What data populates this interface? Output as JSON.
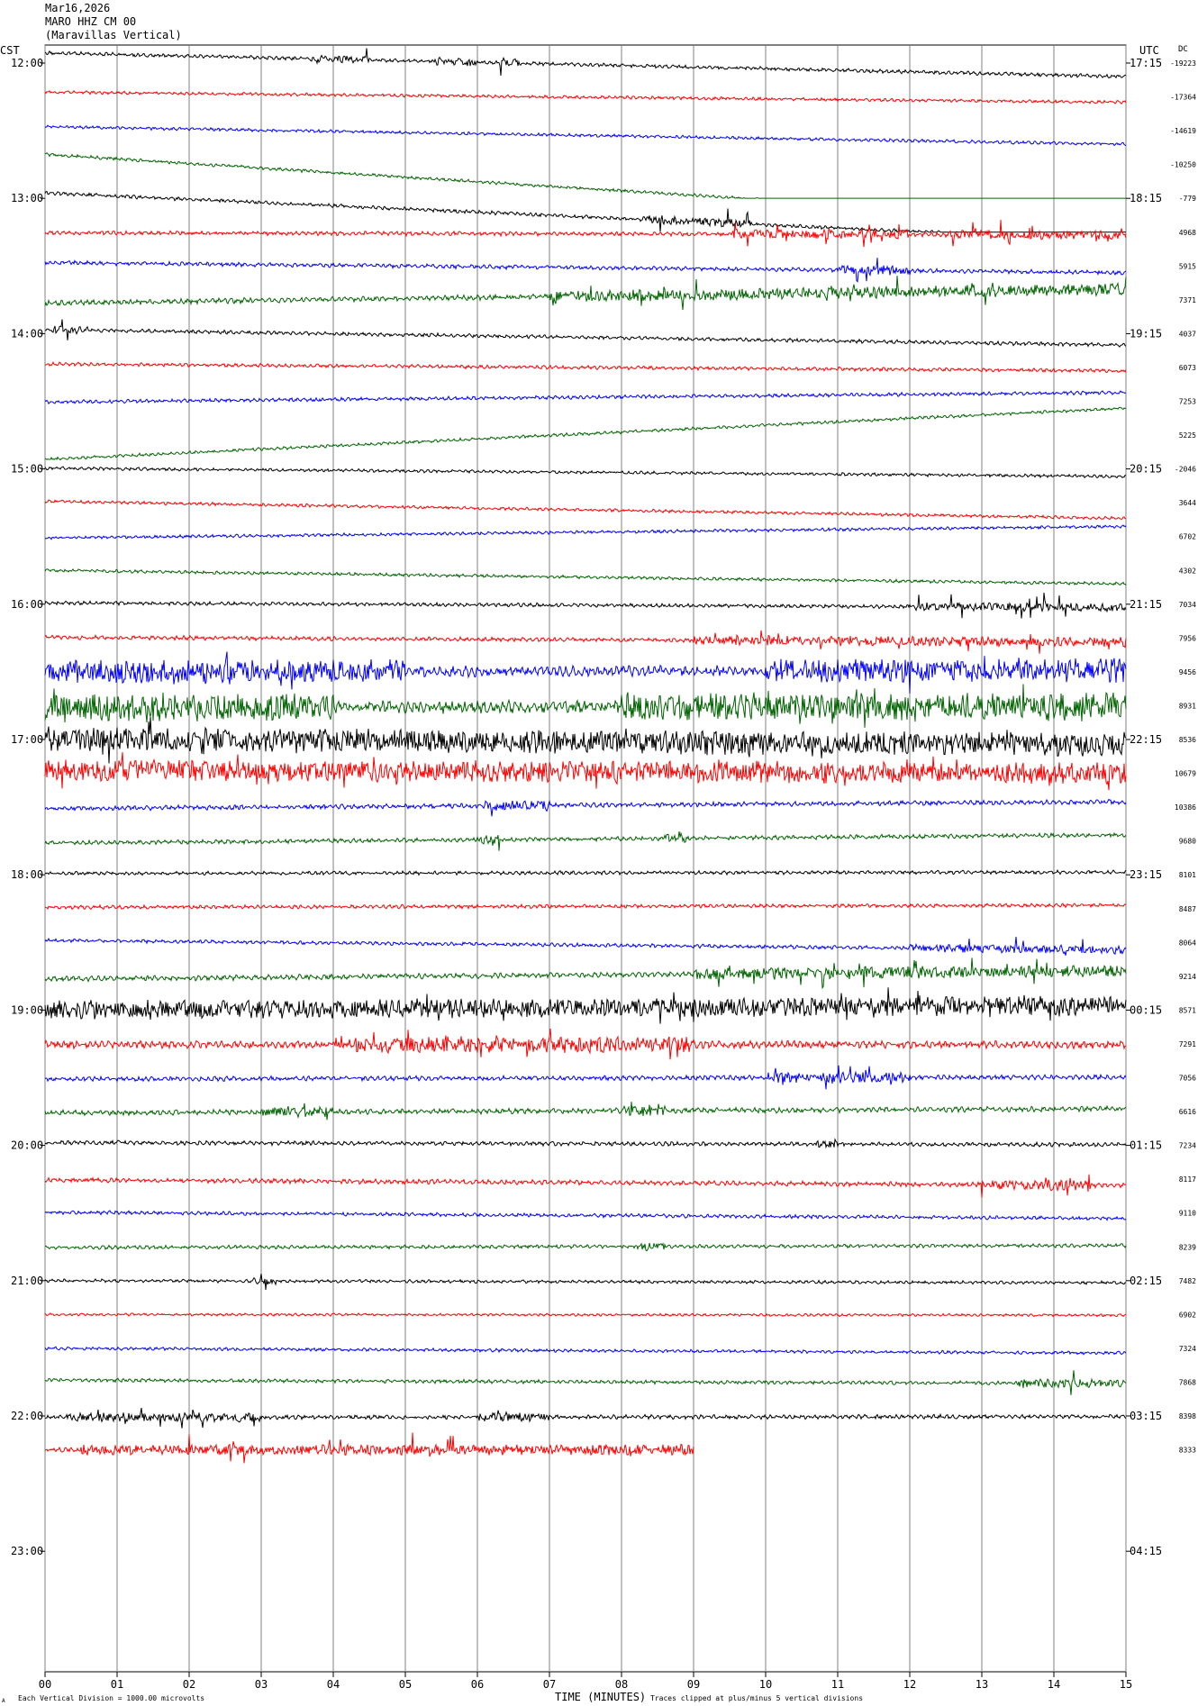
{
  "header": {
    "date": "Mar16,2026",
    "station": "MARO HHZ CM 00",
    "location": "(Maravillas Vertical)"
  },
  "left_axis_label": "CST",
  "right_axis_label": "UTC",
  "dc_label": "DC",
  "bottom": {
    "xlabel": "TIME (MINUTES)",
    "scale_note": "Each Vertical Division = 1000.00 microvolts",
    "clip_note": "Traces clipped at plus/minus 5 vertical divisions",
    "corner_mark": "A"
  },
  "colors": {
    "trace_cycle": [
      "#000000",
      "#ff0000",
      "#0000ff",
      "#006400"
    ],
    "grid": "#808080"
  },
  "chart_data": {
    "type": "line",
    "title": "",
    "xlabel": "TIME (MINUTES)",
    "ylabel": "",
    "xlim": [
      0,
      15
    ],
    "x_ticks": [
      "00",
      "01",
      "02",
      "03",
      "04",
      "05",
      "06",
      "07",
      "08",
      "09",
      "10",
      "11",
      "12",
      "13",
      "14",
      "15"
    ],
    "hours_cst": [
      "12:00",
      "13:00",
      "14:00",
      "15:00",
      "16:00",
      "17:00",
      "18:00",
      "19:00",
      "20:00",
      "21:00",
      "22:00",
      "23:00"
    ],
    "hours_utc": [
      "17:15",
      "18:15",
      "19:15",
      "20:15",
      "21:15",
      "22:15",
      "23:15",
      "00:15",
      "01:15",
      "02:15",
      "03:15",
      "04:15"
    ],
    "traces_per_hour": 4,
    "minutes_per_trace": 15,
    "dc_offsets": [
      -19223,
      -17364,
      -14619,
      -10250,
      -779,
      4968,
      5915,
      7371,
      4037,
      6073,
      7253,
      5225,
      -2046,
      3644,
      6702,
      4302,
      7034,
      7956,
      9456,
      8931,
      8536,
      10679,
      10386,
      9680,
      8101,
      8487,
      8064,
      9214,
      8571,
      7291,
      7056,
      6616,
      7234,
      8117,
      9110,
      8239,
      7482,
      6902,
      7324,
      7868,
      8398,
      8333
    ],
    "series_summary": [
      {
        "start": -1.5,
        "end": 2.0,
        "noise": 0.35,
        "events": [
          [
            3.7,
            4.5
          ],
          [
            5.4,
            6.0
          ],
          [
            6.3,
            6.6
          ]
        ]
      },
      {
        "start": -0.7,
        "end": 0.8,
        "noise": 0.3,
        "events": []
      },
      {
        "start": -0.6,
        "end": 2.0,
        "noise": 0.3,
        "events": []
      },
      {
        "start": -1.5,
        "end": 8.6,
        "noise": 0.3,
        "events": []
      },
      {
        "start": -0.8,
        "end": 6.3,
        "noise": 0.35,
        "events": [
          [
            8.3,
            9.8
          ]
        ]
      },
      {
        "start": 0.1,
        "end": 0.4,
        "noise": 0.4,
        "events": [
          [
            9.5,
            12.0
          ],
          [
            12.5,
            15.0
          ]
        ]
      },
      {
        "start": -0.5,
        "end": 1.0,
        "noise": 0.4,
        "events": [
          [
            11.0,
            12.0
          ]
        ]
      },
      {
        "start": 0.5,
        "end": -1.6,
        "noise": 0.5,
        "events": [
          [
            7.0,
            15.0
          ]
        ]
      },
      {
        "start": -0.6,
        "end": 1.7,
        "noise": 0.35,
        "events": [
          [
            0.1,
            0.6
          ]
        ]
      },
      {
        "start": -0.5,
        "end": 0.5,
        "noise": 0.35,
        "events": []
      },
      {
        "start": 0.1,
        "end": -1.3,
        "noise": 0.35,
        "events": []
      },
      {
        "start": 3.6,
        "end": -4.0,
        "noise": 0.3,
        "events": []
      },
      {
        "start": -0.1,
        "end": 1.1,
        "noise": 0.3,
        "events": []
      },
      {
        "start": -0.2,
        "end": 2.3,
        "noise": 0.3,
        "events": []
      },
      {
        "start": 0.2,
        "end": -1.5,
        "noise": 0.3,
        "events": []
      },
      {
        "start": 0.0,
        "end": 2.0,
        "noise": 0.3,
        "events": []
      },
      {
        "start": -0.2,
        "end": 0.5,
        "noise": 0.35,
        "events": [
          [
            12.0,
            15.0
          ]
        ]
      },
      {
        "start": -0.1,
        "end": 0.6,
        "noise": 0.4,
        "events": [
          [
            9.0,
            15.0
          ]
        ]
      },
      {
        "start": 0.1,
        "end": -0.3,
        "noise": 1.0,
        "events": [
          [
            0.0,
            5.0
          ],
          [
            10.0,
            15.0
          ]
        ]
      },
      {
        "start": 0.3,
        "end": 0.1,
        "noise": 1.2,
        "events": [
          [
            0.0,
            4.0
          ],
          [
            8.0,
            15.0
          ]
        ]
      },
      {
        "start": -0.1,
        "end": 0.8,
        "noise": 1.0,
        "events": [
          [
            0.0,
            15.0
          ]
        ]
      },
      {
        "start": -0.5,
        "end": 0.0,
        "noise": 0.9,
        "events": [
          [
            0.0,
            15.0
          ]
        ]
      },
      {
        "start": 0.2,
        "end": -0.8,
        "noise": 0.45,
        "events": [
          [
            6.1,
            7.0
          ]
        ]
      },
      {
        "start": 0.3,
        "end": -0.9,
        "noise": 0.4,
        "events": [
          [
            6.0,
            6.3
          ],
          [
            8.6,
            8.9
          ]
        ]
      },
      {
        "start": -0.2,
        "end": -0.4,
        "noise": 0.35,
        "events": []
      },
      {
        "start": -0.2,
        "end": -0.5,
        "noise": 0.35,
        "events": []
      },
      {
        "start": -0.3,
        "end": 1.1,
        "noise": 0.35,
        "events": [
          [
            12.0,
            15.0
          ]
        ]
      },
      {
        "start": 0.4,
        "end": -0.8,
        "noise": 0.5,
        "events": [
          [
            9.0,
            15.0
          ]
        ]
      },
      {
        "start": 0.0,
        "end": -0.7,
        "noise": 0.8,
        "events": [
          [
            0.0,
            15.0
          ]
        ]
      },
      {
        "start": 0.1,
        "end": 0.1,
        "noise": 0.7,
        "events": [
          [
            4.0,
            9.0
          ]
        ]
      },
      {
        "start": 0.2,
        "end": -0.1,
        "noise": 0.45,
        "events": [
          [
            10.0,
            12.0
          ]
        ]
      },
      {
        "start": 0.2,
        "end": -0.4,
        "noise": 0.5,
        "events": [
          [
            3.0,
            4.0
          ],
          [
            8.0,
            8.6
          ]
        ]
      },
      {
        "start": -0.4,
        "end": -0.1,
        "noise": 0.4,
        "events": [
          [
            10.7,
            11.0
          ]
        ]
      },
      {
        "start": 0.1,
        "end": 0.9,
        "noise": 0.45,
        "events": [
          [
            13.0,
            14.5
          ]
        ]
      },
      {
        "start": -0.1,
        "end": 0.8,
        "noise": 0.35,
        "events": []
      },
      {
        "start": 0.1,
        "end": -0.2,
        "noise": 0.35,
        "events": [
          [
            8.2,
            8.6
          ]
        ]
      },
      {
        "start": 0.0,
        "end": 0.3,
        "noise": 0.3,
        "events": [
          [
            2.9,
            3.2
          ]
        ]
      },
      {
        "start": 0.0,
        "end": 0.1,
        "noise": 0.25,
        "events": []
      },
      {
        "start": 0.0,
        "end": 0.7,
        "noise": 0.3,
        "events": []
      },
      {
        "start": -0.3,
        "end": 0.2,
        "noise": 0.35,
        "events": [
          [
            13.5,
            15.0
          ]
        ]
      },
      {
        "start": 0.2,
        "end": 0.1,
        "noise": 0.4,
        "events": [
          [
            0.3,
            3.0
          ],
          [
            6.0,
            7.0
          ]
        ]
      },
      {
        "start": 0.0,
        "end": 0.0,
        "noise": 0.45,
        "events": [
          [
            0.5,
            9.0
          ]
        ],
        "end_minute": 9.0
      }
    ]
  }
}
